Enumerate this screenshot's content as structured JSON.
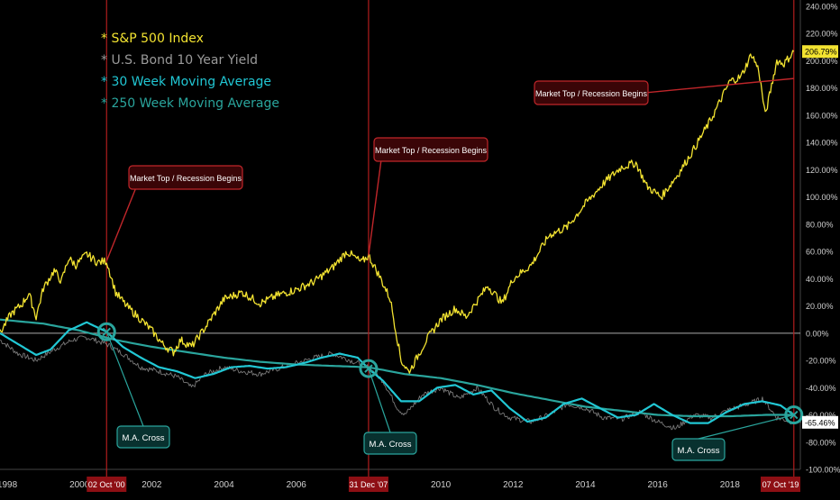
{
  "chart_data": {
    "type": "line",
    "legend": [
      {
        "label": "* S&P 500 Index",
        "color": "#f3e331"
      },
      {
        "label": "* U.S. Bond 10 Year Yield",
        "color": "#9a9a9a"
      },
      {
        "label": "* 30 Week Moving Average",
        "color": "#21c7d4"
      },
      {
        "label": "* 250 Week Moving Average",
        "color": "#2aa59d"
      }
    ],
    "legend_placement": "top-left",
    "y_ticks": [
      "240.00%",
      "220.00%",
      "200.00%",
      "180.00%",
      "160.00%",
      "140.00%",
      "120.00%",
      "100.00%",
      "80.00%",
      "60.00%",
      "40.00%",
      "20.00%",
      "0.00%",
      "-20.00%",
      "-40.00%",
      "-60.00%",
      "-80.00%",
      "-100.00%"
    ],
    "x_ticks": [
      "1998",
      "2000",
      "2002",
      "2004",
      "2006",
      "2008",
      "2010",
      "2012",
      "2014",
      "2016",
      "2018"
    ],
    "ylim": [
      -100,
      240
    ],
    "xlim": [
      1997.8,
      2019.95
    ],
    "zero_line": 0,
    "price_labels": {
      "sp500": {
        "text": "206.79%",
        "value": 206.79
      },
      "yield": {
        "text": "-65.46%",
        "value": -65.46
      }
    },
    "event_dates": [
      {
        "label": "02 Oct '00",
        "x": 2000.75
      },
      {
        "label": "31 Dec '07",
        "x": 2008.0
      },
      {
        "label": "07 Oct '19",
        "x": 2019.77
      }
    ],
    "annotations": [
      {
        "text": "Market Top / Recession Begins",
        "x": 2000.75,
        "y": 53
      },
      {
        "text": "Market Top / Recession Begins",
        "x": 2008.0,
        "y": 57
      },
      {
        "text": "Market Top / Recession Begins",
        "x": 2019.77,
        "y": 187
      }
    ],
    "cross_markers": [
      {
        "text": "M.A. Cross",
        "x": 2000.75,
        "y": 1
      },
      {
        "text": "M.A. Cross",
        "x": 2008.0,
        "y": -26
      },
      {
        "text": "M.A. Cross",
        "x": 2019.77,
        "y": -60
      }
    ],
    "series": [
      {
        "name": "S&P 500 Index",
        "color": "#f3e331",
        "x": [
          1997.8,
          1998.1,
          1998.4,
          1998.6,
          1998.8,
          1999.0,
          1999.3,
          1999.5,
          1999.7,
          1999.9,
          2000.2,
          2000.5,
          2000.75,
          2001.0,
          2001.3,
          2001.7,
          2002.0,
          2002.3,
          2002.6,
          2002.8,
          2003.1,
          2003.5,
          2004.0,
          2004.5,
          2005.0,
          2005.5,
          2006.0,
          2006.5,
          2007.0,
          2007.4,
          2007.8,
          2008.0,
          2008.3,
          2008.6,
          2008.9,
          2009.1,
          2009.2,
          2009.6,
          2010.0,
          2010.4,
          2010.7,
          2011.3,
          2011.7,
          2012.0,
          2012.5,
          2013.0,
          2013.5,
          2014.0,
          2014.5,
          2015.0,
          2015.4,
          2015.7,
          2016.1,
          2016.6,
          2017.0,
          2017.5,
          2018.0,
          2018.3,
          2018.6,
          2018.8,
          2018.98,
          2019.3,
          2019.5,
          2019.77
        ],
        "y": [
          0,
          14,
          21,
          29,
          12,
          33,
          46,
          38,
          55,
          50,
          58,
          52,
          53,
          30,
          20,
          10,
          2,
          -8,
          -14,
          -5,
          -10,
          5,
          25,
          30,
          22,
          28,
          32,
          38,
          48,
          60,
          52,
          57,
          42,
          25,
          -20,
          -28,
          -25,
          -5,
          10,
          18,
          12,
          35,
          22,
          40,
          50,
          72,
          78,
          95,
          110,
          122,
          125,
          108,
          100,
          118,
          135,
          158,
          185,
          188,
          205,
          193,
          160,
          200,
          198,
          206.79
        ]
      },
      {
        "name": "U.S. Bond 10 Year Yield",
        "color": "#8e8e8e",
        "x": [
          1997.8,
          1998.3,
          1998.8,
          1999.3,
          1999.8,
          2000.2,
          2000.75,
          2001.2,
          2001.7,
          2002.2,
          2002.7,
          2003.1,
          2003.5,
          2004.0,
          2004.5,
          2005.0,
          2005.5,
          2006.0,
          2006.5,
          2007.0,
          2007.5,
          2008.0,
          2008.4,
          2008.8,
          2009.0,
          2009.5,
          2010.0,
          2010.5,
          2011.0,
          2011.5,
          2011.9,
          2012.5,
          2013.0,
          2013.5,
          2014.0,
          2014.5,
          2015.0,
          2015.5,
          2016.0,
          2016.5,
          2017.0,
          2017.5,
          2018.0,
          2018.5,
          2018.9,
          2019.3,
          2019.77
        ],
        "y": [
          -5,
          -15,
          -20,
          -12,
          -5,
          -3,
          -8,
          -15,
          -25,
          -28,
          -32,
          -40,
          -30,
          -25,
          -28,
          -30,
          -26,
          -22,
          -18,
          -15,
          -20,
          -25,
          -35,
          -55,
          -60,
          -45,
          -40,
          -48,
          -40,
          -55,
          -62,
          -65,
          -60,
          -52,
          -55,
          -62,
          -63,
          -58,
          -65,
          -70,
          -60,
          -62,
          -56,
          -52,
          -48,
          -62,
          -65.46
        ]
      },
      {
        "name": "30 Week Moving Average",
        "color": "#21c7d4",
        "x": [
          1997.8,
          1998.3,
          1998.8,
          1999.2,
          1999.7,
          2000.2,
          2000.75,
          2001.2,
          2001.7,
          2002.2,
          2002.7,
          2003.2,
          2003.7,
          2004.2,
          2004.7,
          2005.2,
          2005.7,
          2006.2,
          2006.7,
          2007.2,
          2007.7,
          2008.0,
          2008.4,
          2008.9,
          2009.4,
          2009.9,
          2010.4,
          2010.9,
          2011.4,
          2011.9,
          2012.4,
          2012.9,
          2013.4,
          2013.9,
          2014.4,
          2014.9,
          2015.4,
          2015.9,
          2016.4,
          2016.9,
          2017.4,
          2017.9,
          2018.4,
          2018.9,
          2019.4,
          2019.77
        ],
        "y": [
          0,
          -8,
          -16,
          -12,
          2,
          8,
          1,
          -10,
          -18,
          -25,
          -28,
          -33,
          -30,
          -25,
          -24,
          -26,
          -25,
          -22,
          -18,
          -15,
          -18,
          -26,
          -35,
          -50,
          -50,
          -40,
          -38,
          -45,
          -42,
          -55,
          -65,
          -62,
          -52,
          -48,
          -55,
          -62,
          -60,
          -52,
          -60,
          -66,
          -66,
          -58,
          -52,
          -50,
          -53,
          -60
        ]
      },
      {
        "name": "250 Week Moving Average",
        "color": "#2aa59d",
        "x": [
          1997.8,
          1999.0,
          2000.0,
          2001.0,
          2002.0,
          2003.0,
          2004.0,
          2005.0,
          2006.0,
          2007.0,
          2008.0,
          2009.0,
          2010.0,
          2011.0,
          2012.0,
          2013.0,
          2014.0,
          2015.0,
          2016.0,
          2017.0,
          2018.0,
          2019.0,
          2019.77
        ],
        "y": [
          10,
          7,
          2,
          -5,
          -10,
          -14,
          -18,
          -21,
          -23,
          -24,
          -25,
          -30,
          -33,
          -38,
          -44,
          -49,
          -54,
          -57,
          -60,
          -61,
          -61,
          -60,
          -60
        ]
      }
    ]
  }
}
